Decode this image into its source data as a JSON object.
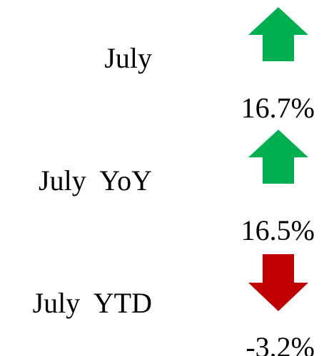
{
  "rows": [
    {
      "label": "July",
      "value": "16.7%",
      "direction": "up",
      "color": "#00b050"
    },
    {
      "label": "July  YoY",
      "value": "16.5%",
      "direction": "up",
      "color": "#00b050"
    },
    {
      "label": "July  YTD",
      "value": "-3.2%",
      "direction": "down",
      "color": "#c00000"
    }
  ]
}
